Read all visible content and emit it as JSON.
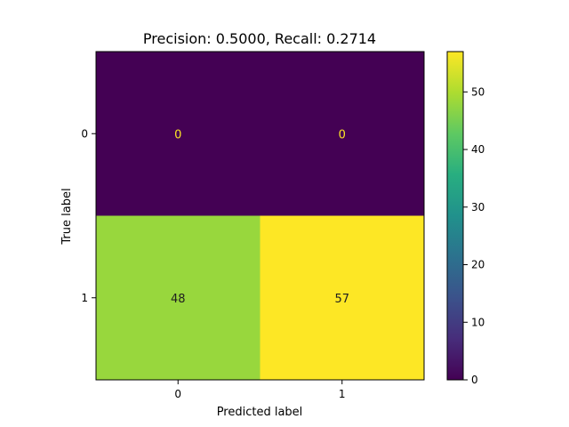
{
  "chart_data": {
    "type": "heatmap",
    "title": "Precision: 0.5000, Recall: 0.2714",
    "xlabel": "Predicted label",
    "ylabel": "True label",
    "x_categories": [
      "0",
      "1"
    ],
    "y_categories": [
      "0",
      "1"
    ],
    "matrix": [
      [
        0,
        0
      ],
      [
        48,
        57
      ]
    ],
    "cell_labels": [
      [
        "0",
        "0"
      ],
      [
        "48",
        "57"
      ]
    ],
    "colormap": "viridis",
    "colorbar": {
      "range": [
        0,
        57
      ],
      "ticks": [
        0,
        10,
        20,
        30,
        40,
        50
      ],
      "tick_labels": [
        "0",
        "10",
        "20",
        "30",
        "40",
        "50"
      ]
    },
    "colors": {
      "low": "#440154",
      "high": "#fde725",
      "text_on_dark": "#fde725",
      "text_on_light": "#1f1f1f"
    }
  }
}
